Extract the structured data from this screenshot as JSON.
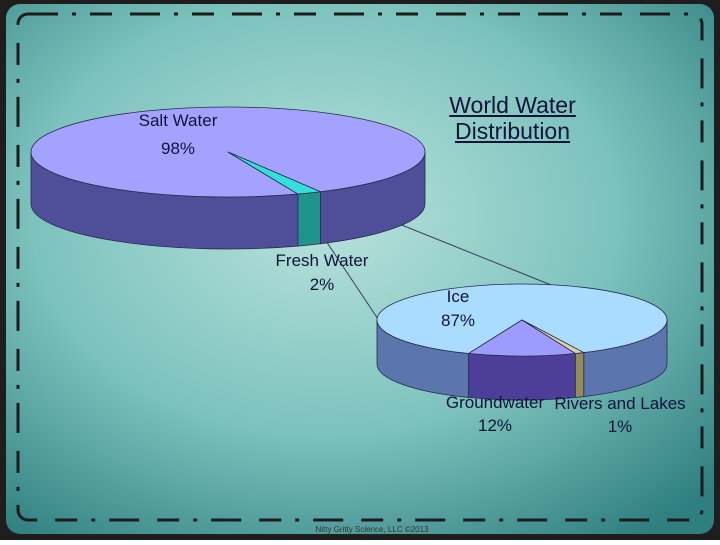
{
  "chart_data": [
    {
      "type": "pie",
      "title": "World Water Distribution",
      "categories": [
        "Salt Water",
        "Fresh Water"
      ],
      "values": [
        98,
        2
      ],
      "value_labels": [
        "98%",
        "2%"
      ],
      "colors": [
        "#a3a3ff",
        "#33e0dc"
      ],
      "side_colors": [
        "#4f4f99",
        "#1f948c"
      ]
    },
    {
      "type": "pie",
      "categories": [
        "Ice",
        "Groundwater",
        "Rivers and Lakes"
      ],
      "values": [
        87,
        12,
        1
      ],
      "value_labels": [
        "87%",
        "12%",
        "1%"
      ],
      "colors": [
        "#a9dcff",
        "#9c9cff",
        "#d9d2a4"
      ],
      "side_colors": [
        "#5a76ad",
        "#4d3f99",
        "#958c5c"
      ]
    }
  ],
  "footer": "Nitty Gritty Science, LLC ©2013"
}
